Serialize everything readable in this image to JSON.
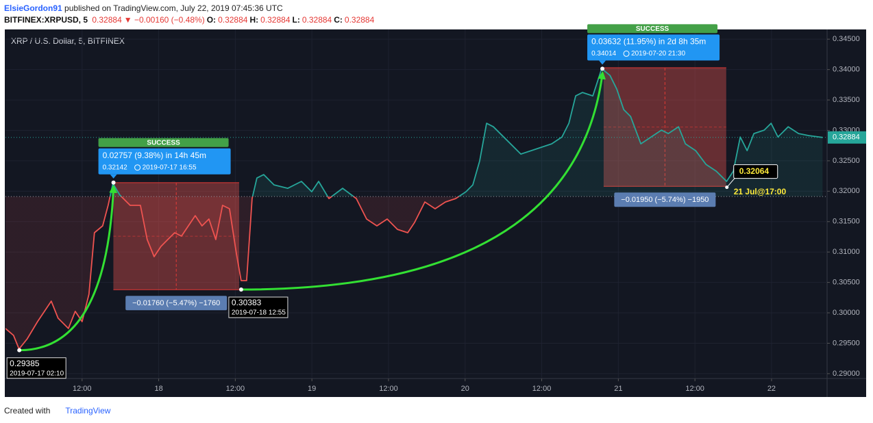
{
  "header": {
    "author": "ElsieGordon91",
    "published": "published on TradingView.com, July 22, 2019 07:45:36 UTC",
    "symbol": "BITFINEX:XRPUSD, 5",
    "price": "0.32884",
    "change": "▼ −0.00160 (−0.48%)",
    "ohlc": [
      {
        "label": "O:",
        "value": "0.32884"
      },
      {
        "label": "H:",
        "value": "0.32884"
      },
      {
        "label": "L:",
        "value": "0.32884"
      },
      {
        "label": "C:",
        "value": "0.32884"
      }
    ]
  },
  "chart_data": {
    "type": "line",
    "legend": "XRP / U.S. Dollar, 5, BITFINEX",
    "color_above": "#26a69a",
    "color_below": "#ef5350",
    "baseline": 0.31913,
    "last_price": 0.32884,
    "xlim": [
      0,
      128.7
    ],
    "ylim": [
      0.2892,
      0.3466
    ],
    "xticks": [
      {
        "value": 12,
        "label": "12:00"
      },
      {
        "value": 24,
        "label": "18"
      },
      {
        "value": 36,
        "label": "12:00"
      },
      {
        "value": 48,
        "label": "19"
      },
      {
        "value": 60,
        "label": "12:00"
      },
      {
        "value": 72,
        "label": "20"
      },
      {
        "value": 84,
        "label": "12:00"
      },
      {
        "value": 96,
        "label": "21"
      },
      {
        "value": 108,
        "label": "12:00"
      },
      {
        "value": 120,
        "label": "22"
      }
    ],
    "yticks": [
      {
        "value": 0.29,
        "label": "0.29000"
      },
      {
        "value": 0.295,
        "label": "0.29500"
      },
      {
        "value": 0.3,
        "label": "0.30000"
      },
      {
        "value": 0.305,
        "label": "0.30500"
      },
      {
        "value": 0.31,
        "label": "0.31000"
      },
      {
        "value": 0.315,
        "label": "0.31500"
      },
      {
        "value": 0.32,
        "label": "0.32000"
      },
      {
        "value": 0.325,
        "label": "0.32500"
      },
      {
        "value": 0.33,
        "label": "0.33000"
      },
      {
        "value": 0.335,
        "label": "0.33500"
      },
      {
        "value": 0.34,
        "label": "0.34000"
      },
      {
        "value": 0.345,
        "label": "0.34500"
      }
    ],
    "grid": true,
    "x": [
      0,
      1.26,
      2.12,
      3.41,
      5.02,
      7.17,
      8.24,
      9.85,
      10.93,
      12.0,
      13.07,
      13.93,
      15.22,
      16.08,
      16.83,
      17.91,
      19.52,
      21.13,
      22.2,
      23.28,
      24.35,
      25.42,
      26.5,
      27.57,
      28.65,
      29.72,
      30.79,
      31.87,
      32.94,
      34.01,
      35.09,
      36.16,
      36.91,
      37.77,
      38.63,
      39.38,
      40.46,
      42.07,
      44.22,
      46.36,
      47.97,
      49.05,
      50.66,
      52.81,
      54.96,
      56.57,
      58.18,
      59.79,
      61.4,
      63.01,
      64.08,
      65.69,
      67.3,
      68.91,
      70.52,
      72.13,
      73.21,
      74.28,
      75.36,
      76.43,
      78.58,
      80.73,
      82.34,
      83.95,
      85.56,
      87.17,
      88.25,
      89.32,
      90.39,
      92.0,
      93.4,
      94.69,
      95.76,
      96.84,
      97.91,
      99.52,
      101.13,
      102.74,
      103.82,
      105.43,
      106.5,
      108.11,
      109.72,
      111.34,
      112.95,
      114.02,
      115.1,
      116.17,
      117.24,
      118.85,
      119.93,
      121.0,
      122.61,
      124.23,
      125.84,
      127.45,
      127.99
    ],
    "values": [
      0.29743,
      0.2963,
      0.29405,
      0.29574,
      0.29855,
      0.30192,
      0.29911,
      0.29743,
      0.30024,
      0.29855,
      0.30305,
      0.31317,
      0.3143,
      0.31767,
      0.32127,
      0.31936,
      0.31767,
      0.31767,
      0.31205,
      0.30923,
      0.31092,
      0.31205,
      0.31317,
      0.31261,
      0.3143,
      0.31598,
      0.3143,
      0.31542,
      0.31205,
      0.31767,
      0.31711,
      0.3098,
      0.3053,
      0.3053,
      0.31879,
      0.32217,
      0.32273,
      0.32104,
      0.32048,
      0.32161,
      0.31992,
      0.32161,
      0.31879,
      0.32048,
      0.31879,
      0.31542,
      0.3143,
      0.31542,
      0.31373,
      0.31317,
      0.31486,
      0.31823,
      0.31711,
      0.31823,
      0.31879,
      0.31992,
      0.32104,
      0.32498,
      0.33117,
      0.3306,
      0.32835,
      0.3261,
      0.32667,
      0.32723,
      0.32779,
      0.32892,
      0.33117,
      0.33567,
      0.33623,
      0.33567,
      0.34016,
      0.33904,
      0.33679,
      0.33342,
      0.33229,
      0.32779,
      0.32892,
      0.33004,
      0.32948,
      0.3306,
      0.32779,
      0.32667,
      0.32442,
      0.32329,
      0.32161,
      0.32329,
      0.32892,
      0.32667,
      0.32948,
      0.33004,
      0.33117,
      0.32892,
      0.3306,
      0.32948,
      0.32914,
      0.32892,
      0.32884
    ],
    "ranges": [
      {
        "x": [
          16.9,
          36.6
        ],
        "top": 0.3214,
        "bottom": 0.3038,
        "label": "−0.01760 (−5.47%) −1760"
      },
      {
        "x": [
          93.7,
          112.9
        ],
        "top": 0.3403,
        "bottom": 0.3208,
        "label": "−0.01950 (−5.74%) −1950"
      }
    ],
    "trades": [
      {
        "status": "SUCCESS",
        "change": "0.02757 (9.38%) in 14h 45m",
        "start": {
          "x": 2.1667,
          "price": 0.29385,
          "time": "2019-07-17 02:10"
        },
        "end": {
          "x": 16.9167,
          "price": 0.32142,
          "time": "2019-07-17 16:55"
        }
      },
      {
        "status": "SUCCESS",
        "change": "0.03632 (11.95%) in 2d 8h 35m",
        "start": {
          "x": 36.9167,
          "price": 0.30383,
          "time": "2019-07-18 12:55"
        },
        "end": {
          "x": 93.5,
          "price": 0.34014,
          "time": "2019-07-20 21:30"
        }
      }
    ],
    "marker": {
      "x": 113,
      "price": 0.32064,
      "time": "21 Jul@17:00"
    }
  },
  "footer": {
    "text": "Created with",
    "brand": "TradingView"
  }
}
